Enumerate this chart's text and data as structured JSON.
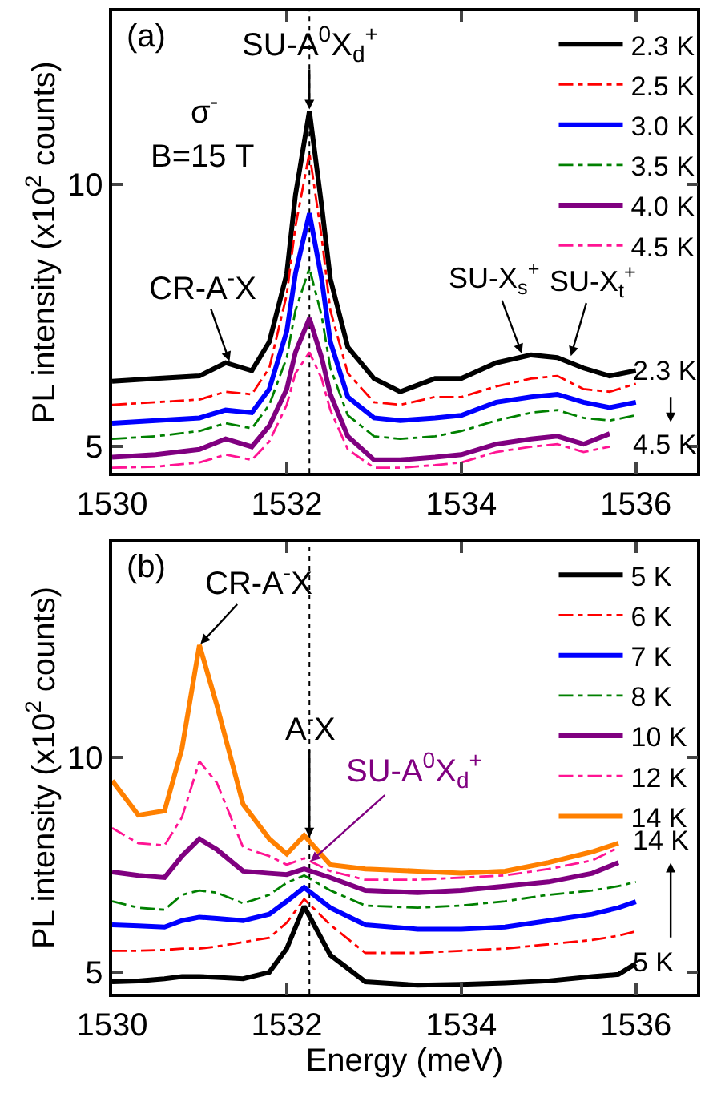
{
  "chart_data": [
    {
      "type": "line",
      "ylabel": "PL intensity (x10$^{2}$ counts)",
      "xlim": [
        1530,
        1536.7
      ],
      "xticks": [
        1530,
        1532,
        1534,
        1536
      ],
      "ylim": [
        4.5,
        13.3
      ],
      "yticks": [
        5,
        10
      ],
      "grid": false,
      "legend": "top right",
      "marker": "none",
      "x": [
        1530,
        1530.5,
        1531,
        1531.3,
        1531.6,
        1531.8,
        1532.0,
        1532.1,
        1532.26,
        1532.4,
        1532.5,
        1532.7,
        1533,
        1533.3,
        1533.7,
        1534,
        1534.4,
        1534.8,
        1535.1,
        1535.4,
        1535.7,
        1536
      ],
      "series": [
        {
          "name": "2.3 K",
          "color": "#000000",
          "line_style": "solid",
          "values": [
            6.25,
            6.3,
            6.35,
            6.6,
            6.45,
            7.0,
            8.3,
            9.8,
            11.4,
            9.6,
            8.2,
            6.9,
            6.3,
            6.05,
            6.3,
            6.3,
            6.6,
            6.75,
            6.7,
            6.5,
            6.35,
            6.45
          ]
        },
        {
          "name": "2.5 K",
          "color": "#ff0000",
          "line_style": "dashdot",
          "values": [
            5.8,
            5.85,
            5.9,
            6.05,
            6.0,
            6.5,
            7.9,
            9.2,
            10.6,
            9.0,
            7.6,
            6.4,
            5.85,
            5.8,
            5.95,
            5.95,
            6.15,
            6.3,
            6.35,
            6.1,
            6.05,
            6.2
          ]
        },
        {
          "name": "3.0 K",
          "color": "#0000ff",
          "line_style": "solid",
          "values": [
            5.45,
            5.5,
            5.55,
            5.7,
            5.65,
            6.1,
            7.2,
            8.3,
            9.45,
            8.2,
            7.0,
            5.95,
            5.55,
            5.5,
            5.55,
            5.6,
            5.85,
            5.95,
            6.0,
            5.85,
            5.75,
            5.85
          ]
        },
        {
          "name": "3.5 K",
          "color": "#008000",
          "line_style": "dashdot",
          "values": [
            5.15,
            5.2,
            5.3,
            5.45,
            5.35,
            5.8,
            6.7,
            7.6,
            8.4,
            7.5,
            6.5,
            5.6,
            5.2,
            5.15,
            5.2,
            5.3,
            5.5,
            5.65,
            5.7,
            5.55,
            5.5,
            5.6
          ]
        },
        {
          "name": "4.0 K",
          "color": "#800080",
          "line_style": "solid",
          "values": [
            4.8,
            4.85,
            4.95,
            5.15,
            5.0,
            5.4,
            6.1,
            6.8,
            7.45,
            6.7,
            6.0,
            5.2,
            4.75,
            4.75,
            4.8,
            4.85,
            5.05,
            5.15,
            5.2,
            5.05,
            5.25,
            null
          ]
        },
        {
          "name": "4.5 K",
          "color": "#ff1493",
          "line_style": "dashdot",
          "values": [
            4.6,
            4.62,
            4.7,
            4.85,
            4.75,
            5.1,
            5.8,
            6.4,
            6.8,
            6.3,
            5.7,
            4.95,
            4.6,
            4.6,
            4.65,
            4.7,
            4.9,
            5.0,
            5.05,
            4.9,
            5.0,
            null
          ]
        }
      ],
      "ref_lines": [
        {
          "axis": "x",
          "value": 1532.26,
          "color": "#000000",
          "line_style": "dotted"
        }
      ],
      "annotations": [
        "(a)",
        {
          "text": "SU-A$^{0}$X$_{d}$$^{+}$",
          "x": 1532.26,
          "y": 11.4
        },
        "σ$^{-}$",
        "B=15 T",
        {
          "text": "CR-A$^{-}$X",
          "x": 1531.35,
          "y": 6.6
        },
        {
          "text": "SU-X$_{s}$$^{+}$",
          "x": 1534.7,
          "y": 6.75
        },
        {
          "text": "SU-X$_{t}$$^{+}$",
          "x": 1535.25,
          "y": 6.7
        },
        "2.3 K",
        "4.5 K"
      ]
    },
    {
      "type": "line",
      "xlabel": "Energy (meV)",
      "ylabel": "PL intensity (x10$^{2}$ counts)",
      "xlim": [
        1530,
        1536.7
      ],
      "xticks": [
        1530,
        1532,
        1534,
        1536
      ],
      "ylim": [
        4.5,
        15.0
      ],
      "yticks": [
        5,
        10
      ],
      "grid": false,
      "legend": "top right",
      "marker": "none",
      "x": [
        1530,
        1530.3,
        1530.6,
        1530.8,
        1531,
        1531.2,
        1531.5,
        1531.8,
        1532,
        1532.2,
        1532.5,
        1532.9,
        1533.5,
        1534,
        1534.5,
        1535,
        1535.5,
        1535.8,
        1536
      ],
      "series": [
        {
          "name": "5 K",
          "color": "#000000",
          "line_style": "solid",
          "values": [
            4.78,
            4.8,
            4.85,
            4.9,
            4.9,
            4.88,
            4.85,
            5.0,
            5.55,
            6.53,
            5.4,
            4.78,
            4.7,
            4.72,
            4.75,
            4.8,
            4.9,
            4.95,
            5.2
          ]
        },
        {
          "name": "6 K",
          "color": "#ff0000",
          "line_style": "dashdot",
          "values": [
            5.5,
            5.5,
            5.52,
            5.55,
            5.55,
            5.6,
            5.7,
            5.8,
            6.15,
            6.7,
            6.1,
            5.45,
            5.45,
            5.5,
            5.55,
            5.65,
            5.75,
            5.85,
            5.95
          ]
        },
        {
          "name": "7 K",
          "color": "#0000ff",
          "line_style": "solid",
          "values": [
            6.1,
            6.08,
            6.05,
            6.2,
            6.28,
            6.25,
            6.2,
            6.35,
            6.65,
            6.97,
            6.5,
            6.1,
            6.0,
            6.0,
            6.05,
            6.2,
            6.35,
            6.5,
            6.64
          ]
        },
        {
          "name": "8 K",
          "color": "#008000",
          "line_style": "dashdot",
          "values": [
            6.65,
            6.5,
            6.45,
            6.8,
            6.9,
            6.85,
            6.6,
            6.8,
            7.08,
            7.25,
            6.9,
            6.55,
            6.5,
            6.55,
            6.65,
            6.8,
            6.9,
            7.0,
            7.1
          ]
        },
        {
          "name": "10 K",
          "color": "#800080",
          "line_style": "solid",
          "values": [
            7.33,
            7.25,
            7.2,
            7.7,
            8.1,
            7.85,
            7.35,
            7.3,
            7.27,
            7.4,
            7.2,
            6.9,
            6.85,
            6.9,
            7.0,
            7.1,
            7.3,
            7.55,
            null
          ]
        },
        {
          "name": "12 K",
          "color": "#ff1493",
          "line_style": "dashdot",
          "values": [
            8.35,
            8.0,
            7.95,
            8.6,
            9.9,
            9.4,
            7.9,
            7.7,
            7.5,
            7.65,
            7.35,
            7.15,
            7.15,
            7.2,
            7.25,
            7.4,
            7.6,
            7.9,
            null
          ]
        },
        {
          "name": "14 K",
          "color": "#ff8000",
          "line_style": "solid",
          "values": [
            9.45,
            8.65,
            8.75,
            10.2,
            12.6,
            11.2,
            8.9,
            8.1,
            7.75,
            8.18,
            7.5,
            7.4,
            7.35,
            7.3,
            7.35,
            7.55,
            7.8,
            8.0,
            null
          ]
        }
      ],
      "ref_lines": [
        {
          "axis": "x",
          "value": 1532.26,
          "color": "#000000",
          "line_style": "dotted"
        }
      ],
      "annotations": [
        "(b)",
        {
          "text": "CR-A$^{-}$X",
          "x": 1531,
          "y": 12.6
        },
        {
          "text": "A$^{-}$X",
          "x": 1532.26,
          "y": 8.1
        },
        {
          "text": "SU-A$^{0}$X$_{d}$$^{+}$",
          "x": 1532.26,
          "y": 7.55
        },
        "14 K",
        "5 K"
      ]
    }
  ]
}
